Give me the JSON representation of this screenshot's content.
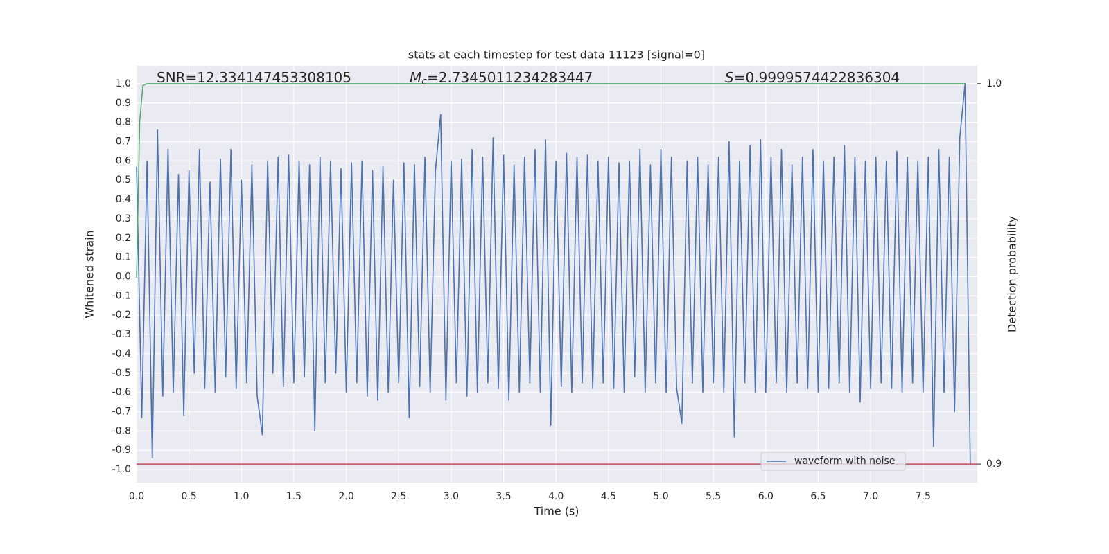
{
  "chart_data": {
    "type": "line",
    "title": "stats at each timestep for test data 11123 [signal=0]",
    "xlabel": "Time (s)",
    "ylabel": "Whitened strain",
    "y2label": "Detection probability",
    "annotations": [
      {
        "text": "SNR=12.334147453308105"
      },
      {
        "symbol": "M",
        "subscript": "c",
        "text": "=2.7345011234283447"
      },
      {
        "symbol": "S",
        "text": "=0.9999574422836304"
      }
    ],
    "xlim": [
      0,
      8.017
    ],
    "ylim": [
      -1.068,
      1.093
    ],
    "y2lim": [
      0.8951,
      1.0047
    ],
    "xticks": [
      {
        "value": 0,
        "label": "0.0"
      },
      0.5,
      {
        "value": 1,
        "label": "1.0"
      },
      1.5,
      {
        "value": 2,
        "label": "2.0"
      },
      2.5,
      {
        "value": 3,
        "label": "3.0"
      },
      3.5,
      {
        "value": 4,
        "label": "4.0"
      },
      4.5,
      {
        "value": 5,
        "label": "5.0"
      },
      5.5,
      {
        "value": 6,
        "label": "6.0"
      },
      6.5,
      {
        "value": 7,
        "label": "7.0"
      },
      7.5
    ],
    "yticks": [
      {
        "value": 1,
        "label": "1.0"
      },
      0.9,
      0.8,
      0.7,
      0.6,
      0.5,
      0.4,
      0.3,
      0.2,
      0.1,
      {
        "value": 0,
        "label": "0.0"
      },
      -0.1,
      -0.2,
      -0.3,
      -0.4,
      -0.5,
      -0.6,
      -0.7,
      -0.8,
      -0.9,
      {
        "value": -1,
        "label": "-1.0"
      }
    ],
    "y2ticks": [
      {
        "value": 1,
        "label": "1.0"
      },
      0.9
    ],
    "grid": true,
    "legend": "lower right",
    "series": [
      {
        "name": "waveform with noise",
        "color": "#4c72b0",
        "x": [
          0,
          0.05,
          0.1,
          0.15,
          0.2,
          0.25,
          0.3,
          0.35,
          0.4,
          0.45,
          0.5,
          0.55,
          0.6,
          0.65,
          0.7,
          0.75,
          0.8,
          0.85,
          0.9,
          0.95,
          1,
          1.05,
          1.1,
          1.15,
          1.2,
          1.25,
          1.3,
          1.35,
          1.4,
          1.45,
          1.5,
          1.55,
          1.6,
          1.65,
          1.7,
          1.75,
          1.8,
          1.85,
          1.9,
          1.95,
          2,
          2.05,
          2.1,
          2.15,
          2.2,
          2.25,
          2.3,
          2.35,
          2.4,
          2.45,
          2.5,
          2.55,
          2.6,
          2.65,
          2.7,
          2.75,
          2.8,
          2.85,
          2.9,
          2.95,
          3,
          3.05,
          3.1,
          3.15,
          3.2,
          3.25,
          3.3,
          3.35,
          3.4,
          3.45,
          3.5,
          3.55,
          3.6,
          3.65,
          3.7,
          3.75,
          3.8,
          3.85,
          3.9,
          3.95,
          4,
          4.05,
          4.1,
          4.15,
          4.2,
          4.25,
          4.3,
          4.35,
          4.4,
          4.45,
          4.5,
          4.55,
          4.6,
          4.65,
          4.7,
          4.75,
          4.8,
          4.85,
          4.9,
          4.95,
          5,
          5.05,
          5.1,
          5.15,
          5.2,
          5.25,
          5.3,
          5.35,
          5.4,
          5.45,
          5.5,
          5.55,
          5.6,
          5.65,
          5.7,
          5.75,
          5.8,
          5.85,
          5.9,
          5.95,
          6,
          6.05,
          6.1,
          6.15,
          6.2,
          6.25,
          6.3,
          6.35,
          6.4,
          6.45,
          6.5,
          6.55,
          6.6,
          6.65,
          6.7,
          6.75,
          6.8,
          6.85,
          6.9,
          6.95,
          7,
          7.05,
          7.1,
          7.15,
          7.2,
          7.25,
          7.3,
          7.35,
          7.4,
          7.45,
          7.5,
          7.55,
          7.6,
          7.65,
          7.7,
          7.75,
          7.8,
          7.85,
          7.9,
          7.95
        ],
        "values": [
          0.57,
          -0.73,
          0.6,
          -0.94,
          0.76,
          -0.62,
          0.66,
          -0.6,
          0.53,
          -0.72,
          0.55,
          -0.5,
          0.66,
          -0.58,
          0.49,
          -0.6,
          0.61,
          -0.52,
          0.66,
          -0.58,
          0.5,
          -0.55,
          0.58,
          -0.62,
          -0.82,
          0.6,
          -0.5,
          0.62,
          -0.57,
          0.63,
          -0.55,
          0.6,
          -0.52,
          0.58,
          -0.8,
          0.62,
          -0.55,
          0.6,
          -0.5,
          0.56,
          -0.6,
          0.59,
          -0.55,
          0.6,
          -0.62,
          0.55,
          -0.64,
          0.57,
          -0.6,
          0.5,
          -0.55,
          0.59,
          -0.73,
          0.58,
          -0.57,
          0.62,
          -0.6,
          0.55,
          0.84,
          -0.64,
          0.6,
          -0.55,
          0.61,
          -0.62,
          0.66,
          -0.6,
          0.62,
          -0.55,
          0.72,
          -0.58,
          0.63,
          -0.64,
          0.58,
          -0.6,
          0.62,
          -0.55,
          0.66,
          -0.6,
          0.71,
          -0.77,
          0.6,
          -0.57,
          0.64,
          -0.6,
          0.62,
          -0.55,
          0.63,
          -0.58,
          0.6,
          -0.55,
          0.62,
          -0.58,
          0.59,
          -0.6,
          0.6,
          -0.52,
          0.66,
          -0.6,
          0.58,
          -0.55,
          0.66,
          -0.6,
          0.62,
          -0.58,
          -0.76,
          0.6,
          -0.55,
          0.62,
          -0.6,
          0.58,
          -0.55,
          0.62,
          -0.6,
          0.7,
          -0.83,
          0.6,
          -0.55,
          0.68,
          -0.6,
          0.71,
          -0.6,
          0.62,
          -0.55,
          0.66,
          -0.6,
          0.58,
          -0.55,
          0.62,
          -0.58,
          0.66,
          -0.6,
          0.6,
          -0.58,
          0.62,
          -0.55,
          0.68,
          -0.6,
          0.62,
          -0.65,
          0.6,
          -0.58,
          0.62,
          -0.55,
          0.6,
          -0.58,
          0.65,
          -0.6,
          0.62,
          -0.55,
          0.6,
          -0.6,
          0.62,
          -0.88,
          0.66,
          -0.6,
          0.62,
          -0.7,
          0.72,
          1.0,
          -0.97
        ]
      },
      {
        "color": "#55a868",
        "axis": "y2",
        "x": [
          0,
          0.03,
          0.06,
          0.1,
          7.9
        ],
        "values": [
          0.949,
          0.99,
          0.9995,
          1.0,
          1.0
        ]
      }
    ],
    "hline": {
      "value": 0.9,
      "axis": "y2",
      "color": "#c44e52"
    }
  }
}
